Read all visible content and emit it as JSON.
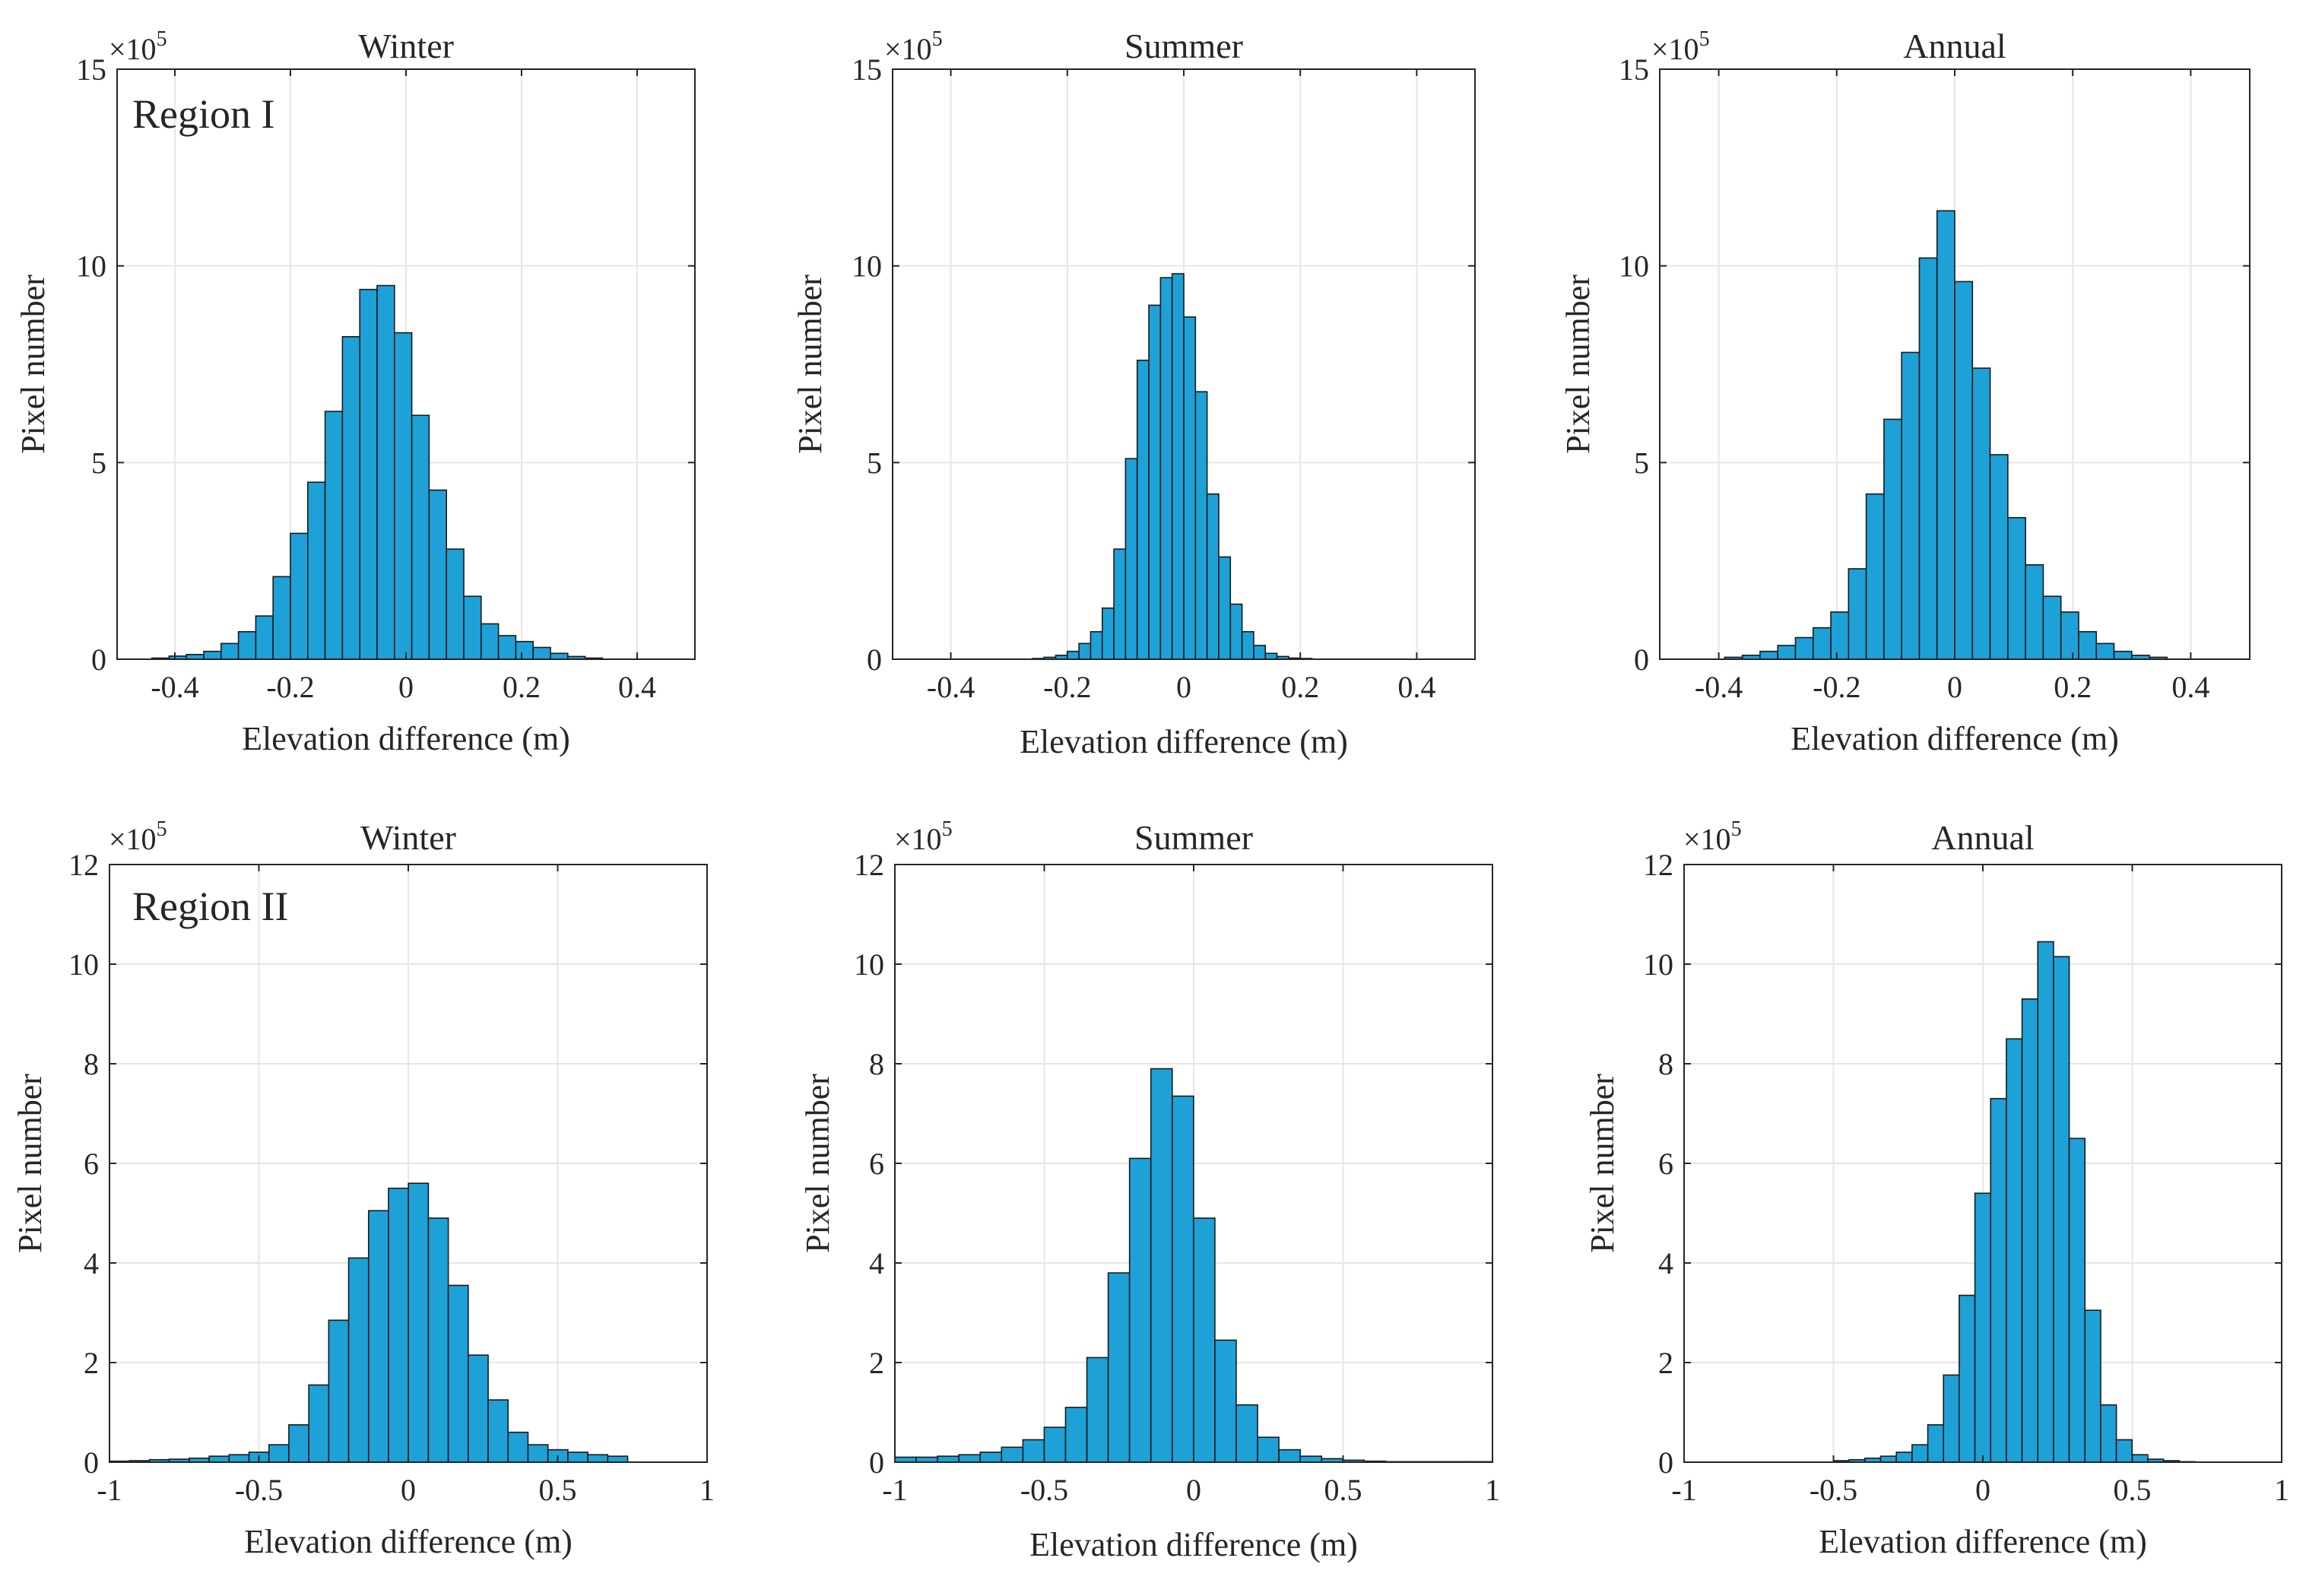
{
  "chart_data": [
    {
      "id": "r1-winter",
      "type": "bar",
      "title": "Winter",
      "region_label": "Region I",
      "xlabel": "Elevation difference (m)",
      "ylabel": "Pixel number",
      "y_exponent_label": "×10",
      "y_exponent_power": "5",
      "xlim": [
        -0.5,
        0.5
      ],
      "ylim": [
        0,
        15
      ],
      "xticks": [
        -0.4,
        -0.2,
        0,
        0.2,
        0.4
      ],
      "xtick_labels": [
        "-0.4",
        "-0.2",
        "0",
        "0.2",
        "0.4"
      ],
      "yticks": [
        0,
        5,
        10,
        15
      ],
      "ytick_labels": [
        "0",
        "5",
        "10",
        "15"
      ],
      "bin_edges_start": -0.44,
      "bin_width": 0.03,
      "values": [
        0.03,
        0.08,
        0.12,
        0.2,
        0.4,
        0.7,
        1.1,
        2.1,
        3.2,
        4.5,
        6.3,
        8.2,
        9.4,
        9.5,
        8.3,
        6.2,
        4.3,
        2.8,
        1.6,
        0.9,
        0.6,
        0.45,
        0.3,
        0.15,
        0.07,
        0.03
      ],
      "bar_color": "#1ea1d7"
    },
    {
      "id": "r1-summer",
      "type": "bar",
      "title": "Summer",
      "region_label": "",
      "xlabel": "Elevation difference (m)",
      "ylabel": "Pixel number",
      "y_exponent_label": "×10",
      "y_exponent_power": "5",
      "xlim": [
        -0.5,
        0.5
      ],
      "ylim": [
        0,
        15
      ],
      "xticks": [
        -0.4,
        -0.2,
        0,
        0.2,
        0.4
      ],
      "xtick_labels": [
        "-0.4",
        "-0.2",
        "0",
        "0.2",
        "0.4"
      ],
      "yticks": [
        0,
        5,
        10,
        15
      ],
      "ytick_labels": [
        "0",
        "5",
        "10",
        "15"
      ],
      "bin_edges_start": -0.26,
      "bin_width": 0.02,
      "values": [
        0.02,
        0.05,
        0.1,
        0.2,
        0.4,
        0.7,
        1.3,
        2.8,
        5.1,
        7.6,
        9.0,
        9.7,
        9.8,
        8.7,
        6.8,
        4.2,
        2.6,
        1.4,
        0.7,
        0.35,
        0.15,
        0.07,
        0.03,
        0.02
      ],
      "bar_color": "#1ea1d7"
    },
    {
      "id": "r1-annual",
      "type": "bar",
      "title": "Annual",
      "region_label": "",
      "xlabel": "Elevation difference (m)",
      "ylabel": "Pixel number",
      "y_exponent_label": "×10",
      "y_exponent_power": "5",
      "xlim": [
        -0.5,
        0.5
      ],
      "ylim": [
        0,
        15
      ],
      "xticks": [
        -0.4,
        -0.2,
        0,
        0.2,
        0.4
      ],
      "xtick_labels": [
        "-0.4",
        "-0.2",
        "0",
        "0.2",
        "0.4"
      ],
      "yticks": [
        0,
        5,
        10,
        15
      ],
      "ytick_labels": [
        "0",
        "5",
        "10",
        "15"
      ],
      "bin_edges_start": -0.39,
      "bin_width": 0.03,
      "values": [
        0.05,
        0.1,
        0.2,
        0.35,
        0.55,
        0.8,
        1.2,
        2.3,
        4.2,
        6.1,
        7.8,
        10.2,
        11.4,
        9.6,
        7.4,
        5.2,
        3.6,
        2.4,
        1.6,
        1.2,
        0.7,
        0.4,
        0.2,
        0.1,
        0.05
      ],
      "bar_color": "#1ea1d7"
    },
    {
      "id": "r2-winter",
      "type": "bar",
      "title": "Winter",
      "region_label": "Region II",
      "xlabel": "Elevation difference (m)",
      "ylabel": "Pixel number",
      "y_exponent_label": "×10",
      "y_exponent_power": "5",
      "xlim": [
        -1,
        1
      ],
      "ylim": [
        0,
        12
      ],
      "xticks": [
        -1,
        -0.5,
        0,
        0.5,
        1
      ],
      "xtick_labels": [
        "-1",
        "-0.5",
        "0",
        "0.5",
        "1"
      ],
      "yticks": [
        0,
        2,
        4,
        6,
        8,
        10,
        12
      ],
      "ytick_labels": [
        "0",
        "2",
        "4",
        "6",
        "8",
        "10",
        "12"
      ],
      "bin_edges_start": -1.0,
      "bin_width": 0.0667,
      "values": [
        0.02,
        0.03,
        0.05,
        0.06,
        0.08,
        0.12,
        0.15,
        0.2,
        0.35,
        0.75,
        1.55,
        2.85,
        4.1,
        5.05,
        5.5,
        5.6,
        4.9,
        3.55,
        2.15,
        1.25,
        0.6,
        0.35,
        0.25,
        0.2,
        0.15,
        0.12
      ],
      "bar_color": "#1ea1d7"
    },
    {
      "id": "r2-summer",
      "type": "bar",
      "title": "Summer",
      "region_label": "",
      "xlabel": "Elevation difference (m)",
      "ylabel": "Pixel number",
      "y_exponent_label": "×10",
      "y_exponent_power": "5",
      "xlim": [
        -1,
        1
      ],
      "ylim": [
        0,
        12
      ],
      "xticks": [
        -1,
        -0.5,
        0,
        0.5,
        1
      ],
      "xtick_labels": [
        "-1",
        "-0.5",
        "0",
        "0.5",
        "1"
      ],
      "yticks": [
        0,
        2,
        4,
        6,
        8,
        10,
        12
      ],
      "ytick_labels": [
        "0",
        "2",
        "4",
        "6",
        "8",
        "10",
        "12"
      ],
      "bin_edges_start": -1.0,
      "bin_width": 0.0714,
      "values": [
        0.1,
        0.1,
        0.12,
        0.15,
        0.2,
        0.3,
        0.45,
        0.7,
        1.1,
        2.1,
        3.8,
        6.1,
        7.9,
        7.35,
        4.9,
        2.45,
        1.15,
        0.5,
        0.25,
        0.12,
        0.07,
        0.04,
        0.02,
        0.01,
        0.01,
        0.01,
        0.01,
        0.01
      ],
      "bar_color": "#1ea1d7"
    },
    {
      "id": "r2-annual",
      "type": "bar",
      "title": "Annual",
      "region_label": "",
      "xlabel": "Elevation difference (m)",
      "ylabel": "Pixel number",
      "y_exponent_label": "×10",
      "y_exponent_power": "5",
      "xlim": [
        -1,
        1
      ],
      "ylim": [
        0,
        12
      ],
      "xticks": [
        -1,
        -0.5,
        0,
        0.5,
        1
      ],
      "xtick_labels": [
        "-1",
        "-0.5",
        "0",
        "0.5",
        "1"
      ],
      "yticks": [
        0,
        2,
        4,
        6,
        8,
        10,
        12
      ],
      "ytick_labels": [
        "0",
        "2",
        "4",
        "6",
        "8",
        "10",
        "12"
      ],
      "bin_edges_start": -0.5,
      "bin_width": 0.0526,
      "values": [
        0.03,
        0.05,
        0.08,
        0.12,
        0.2,
        0.35,
        0.75,
        1.75,
        3.35,
        5.4,
        7.3,
        8.5,
        9.3,
        10.45,
        10.15,
        6.5,
        3.05,
        1.15,
        0.45,
        0.15,
        0.06,
        0.03,
        0.01
      ],
      "bar_color": "#1ea1d7"
    }
  ]
}
